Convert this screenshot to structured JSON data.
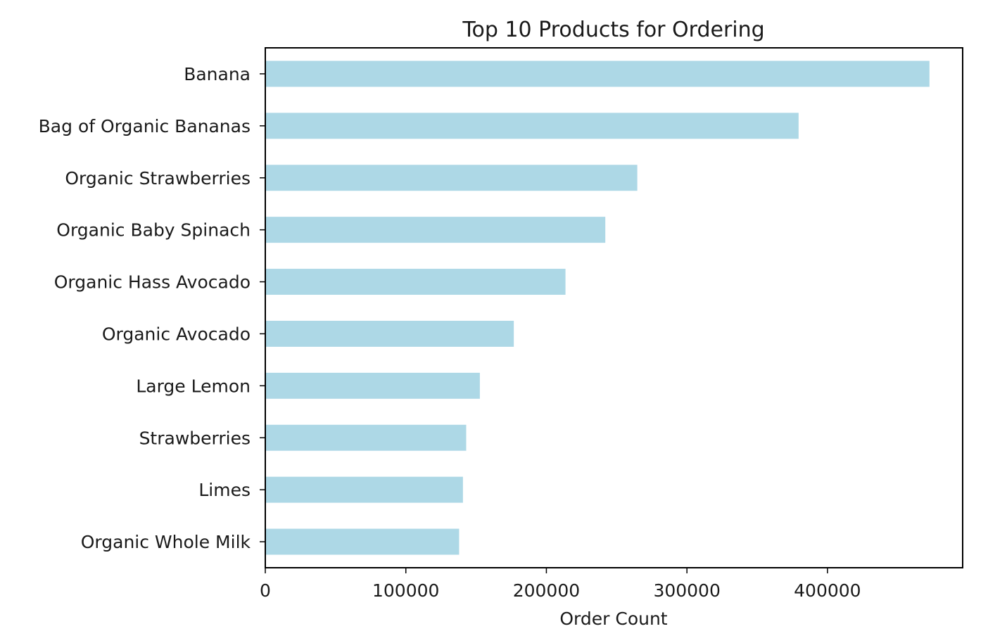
{
  "chart_data": {
    "type": "bar",
    "orientation": "horizontal",
    "title": "Top 10 Products for Ordering",
    "xlabel": "Order Count",
    "ylabel": "",
    "categories": [
      "Banana",
      "Bag of Organic Bananas",
      "Organic Strawberries",
      "Organic Baby Spinach",
      "Organic Hass Avocado",
      "Organic Avocado",
      "Large Lemon",
      "Strawberries",
      "Limes",
      "Organic Whole Milk"
    ],
    "values": [
      472565,
      379450,
      264683,
      241921,
      213584,
      176815,
      152657,
      142951,
      140627,
      137905
    ],
    "xlim": [
      0,
      496193
    ],
    "xticks": [
      0,
      100000,
      200000,
      300000,
      400000
    ],
    "xtick_labels": [
      "0",
      "100000",
      "200000",
      "300000",
      "400000"
    ],
    "bar_color": "#add8e6",
    "grid": false,
    "legend": "none"
  }
}
